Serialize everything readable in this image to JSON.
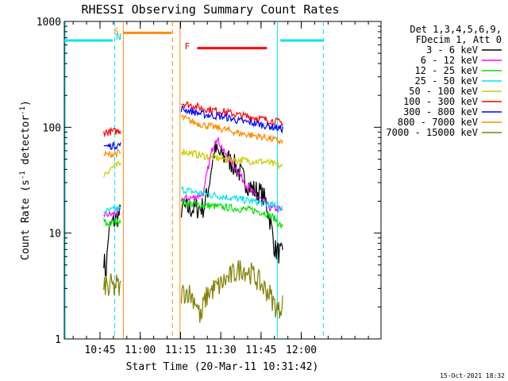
{
  "chart_data": {
    "type": "line",
    "title": "RHESSI Observing Summary Count Rates",
    "xlabel": "Start Time (20-Mar-11 10:31:42)",
    "ylabel_main": "Count Rate (s",
    "ylabel_sup1": "-1",
    "ylabel_mid": " detector",
    "ylabel_sup2": "-1",
    "ylabel_end": ")",
    "yscale": "log",
    "ylim": [
      1,
      1000
    ],
    "xlim_minutes": [
      0,
      118
    ],
    "y_ticks": [
      {
        "v": 1,
        "label": "1"
      },
      {
        "v": 10,
        "label": "10"
      },
      {
        "v": 100,
        "label": "100"
      },
      {
        "v": 1000,
        "label": "1000"
      }
    ],
    "x_ticks": [
      {
        "t": 13.3,
        "label": "10:45"
      },
      {
        "t": 28.3,
        "label": "11:00"
      },
      {
        "t": 43.3,
        "label": "11:15"
      },
      {
        "t": 58.3,
        "label": "11:30"
      },
      {
        "t": 73.3,
        "label": "11:45"
      },
      {
        "t": 88.3,
        "label": "12:00"
      }
    ],
    "legend_header": [
      "Det 1,3,4,5,6,9,",
      "FDecim 1, Att 0"
    ],
    "footer_date": "15-Oct-2021 18:32",
    "flags": [
      {
        "letter": "S",
        "t": 19.4,
        "color": "#ff8c00"
      },
      {
        "letter": "N",
        "t": 20.2,
        "color": "#00c8c8"
      },
      {
        "letter": "F",
        "t": 45.8,
        "color": "#e00000"
      }
    ],
    "bars": [
      {
        "t0": 0,
        "t1": 18,
        "y": 660,
        "color": "#00e5ee"
      },
      {
        "t0": 22,
        "t1": 40,
        "y": 780,
        "color": "#ff8c00"
      },
      {
        "t0": 49.5,
        "t1": 75.5,
        "y": 560,
        "color": "#ff0000"
      },
      {
        "t0": 80.5,
        "t1": 96.5,
        "y": 660,
        "color": "#00e5ee"
      }
    ],
    "vlines": [
      {
        "t": 0.3,
        "color": "#00e5ee",
        "dash": false
      },
      {
        "t": 18.8,
        "color": "#00e5ee",
        "dash": true
      },
      {
        "t": 22.0,
        "color": "#ff8c00",
        "dash": false
      },
      {
        "t": 40.3,
        "color": "#ff8c00",
        "dash": true
      },
      {
        "t": 43.1,
        "color": "#ff8c00",
        "dash": false
      },
      {
        "t": 79.4,
        "color": "#00e5ee",
        "dash": false
      },
      {
        "t": 96.5,
        "color": "#00e5ee",
        "dash": true
      }
    ],
    "segments": [
      {
        "t0": 14.7,
        "t1": 21.0
      },
      {
        "t0": 43.6,
        "t1": 81.6
      }
    ],
    "series": [
      {
        "name": "3 - 6 keV",
        "color": "#000000",
        "points": [
          [
            14.7,
            6
          ],
          [
            15.5,
            4
          ],
          [
            16.5,
            10
          ],
          [
            17.5,
            12
          ],
          [
            18.5,
            13
          ],
          [
            19.5,
            14
          ],
          [
            20.5,
            15
          ],
          [
            21,
            15
          ],
          [
            43.6,
            17
          ],
          [
            48,
            17
          ],
          [
            52,
            17.5
          ],
          [
            53,
            22
          ],
          [
            54,
            30
          ],
          [
            55,
            45
          ],
          [
            56,
            60
          ],
          [
            57,
            58
          ],
          [
            58,
            55
          ],
          [
            61,
            50
          ],
          [
            64,
            42
          ],
          [
            67,
            32
          ],
          [
            70,
            26
          ],
          [
            73,
            24
          ],
          [
            75,
            20
          ],
          [
            76.5,
            14
          ],
          [
            77.5,
            10
          ],
          [
            78.5,
            7
          ],
          [
            80,
            6.5
          ],
          [
            81.6,
            6
          ]
        ]
      },
      {
        "name": "6 - 12 keV",
        "color": "#ff00ff",
        "points": [
          [
            14.7,
            15
          ],
          [
            16,
            15
          ],
          [
            18,
            15
          ],
          [
            20,
            16
          ],
          [
            21,
            16
          ],
          [
            43.6,
            21
          ],
          [
            48,
            21.5
          ],
          [
            52,
            24
          ],
          [
            53,
            35
          ],
          [
            55,
            60
          ],
          [
            56.5,
            80
          ],
          [
            58,
            70
          ],
          [
            60,
            55
          ],
          [
            63,
            45
          ],
          [
            66,
            34
          ],
          [
            68,
            28
          ],
          [
            70,
            24
          ],
          [
            73,
            21
          ],
          [
            75,
            19
          ],
          [
            77,
            17
          ],
          [
            79,
            17
          ],
          [
            81.6,
            16.5
          ]
        ]
      },
      {
        "name": "12 - 25 keV",
        "color": "#00e000",
        "points": [
          [
            14.7,
            13
          ],
          [
            16,
            12
          ],
          [
            18,
            12.5
          ],
          [
            20,
            13
          ],
          [
            21,
            13.5
          ],
          [
            43.6,
            19.5
          ],
          [
            50,
            18.5
          ],
          [
            55,
            18
          ],
          [
            60,
            17.5
          ],
          [
            65,
            17
          ],
          [
            70,
            16.5
          ],
          [
            75,
            15.5
          ],
          [
            78,
            14
          ],
          [
            81.6,
            11
          ]
        ]
      },
      {
        "name": "25 - 50 keV",
        "color": "#00e5ee",
        "points": [
          [
            14.7,
            16
          ],
          [
            16,
            16
          ],
          [
            18,
            16.5
          ],
          [
            20,
            17
          ],
          [
            21,
            17
          ],
          [
            43.6,
            26
          ],
          [
            50,
            24
          ],
          [
            55,
            23
          ],
          [
            60,
            22
          ],
          [
            65,
            21
          ],
          [
            70,
            20
          ],
          [
            75,
            19
          ],
          [
            81.6,
            17
          ]
        ]
      },
      {
        "name": "50 - 100 keV",
        "color": "#cccc00",
        "points": [
          [
            14.7,
            36
          ],
          [
            16,
            38
          ],
          [
            18,
            42
          ],
          [
            20,
            44
          ],
          [
            21,
            45
          ],
          [
            43.6,
            60
          ],
          [
            50,
            55
          ],
          [
            55,
            52
          ],
          [
            60,
            50
          ],
          [
            65,
            49
          ],
          [
            70,
            48
          ],
          [
            75,
            47
          ],
          [
            81.6,
            42
          ]
        ]
      },
      {
        "name": "100 - 300 keV",
        "color": "#ff0000",
        "points": [
          [
            14.7,
            90
          ],
          [
            16,
            90
          ],
          [
            18,
            91
          ],
          [
            20,
            92
          ],
          [
            21,
            93
          ],
          [
            43.6,
            170
          ],
          [
            48,
            160
          ],
          [
            52,
            150
          ],
          [
            56,
            145
          ],
          [
            60,
            140
          ],
          [
            65,
            130
          ],
          [
            70,
            125
          ],
          [
            75,
            118
          ],
          [
            81.6,
            110
          ]
        ]
      },
      {
        "name": "300 - 800 keV",
        "color": "#0000ff",
        "points": [
          [
            14.7,
            67
          ],
          [
            16,
            66
          ],
          [
            18,
            67
          ],
          [
            20,
            68
          ],
          [
            21,
            68
          ],
          [
            43.6,
            150
          ],
          [
            48,
            140
          ],
          [
            52,
            132
          ],
          [
            56,
            128
          ],
          [
            60,
            125
          ],
          [
            65,
            115
          ],
          [
            70,
            110
          ],
          [
            75,
            104
          ],
          [
            81.6,
            96
          ]
        ]
      },
      {
        "name": "800 - 7000 keV",
        "color": "#ff8c00",
        "points": [
          [
            14.7,
            55
          ],
          [
            16,
            55
          ],
          [
            18,
            56
          ],
          [
            20,
            57
          ],
          [
            21,
            57
          ],
          [
            43.6,
            125
          ],
          [
            48,
            112
          ],
          [
            52,
            105
          ],
          [
            56,
            100
          ],
          [
            60,
            95
          ],
          [
            65,
            88
          ],
          [
            70,
            84
          ],
          [
            75,
            80
          ],
          [
            81.6,
            72
          ]
        ]
      },
      {
        "name": "7000 - 15000 keV",
        "color": "#808000",
        "points": [
          [
            14.7,
            2.8
          ],
          [
            15.5,
            3.4
          ],
          [
            16.5,
            2.8
          ],
          [
            17.5,
            3.3
          ],
          [
            18.5,
            3
          ],
          [
            19.5,
            3.3
          ],
          [
            20.5,
            2.9
          ],
          [
            21,
            3
          ],
          [
            43.6,
            2.7
          ],
          [
            46,
            2.8
          ],
          [
            49,
            2.3
          ],
          [
            51,
            1.5
          ],
          [
            52,
            2.2
          ],
          [
            54,
            2.8
          ],
          [
            56,
            3
          ],
          [
            58,
            3.2
          ],
          [
            60,
            3.6
          ],
          [
            62,
            3.9
          ],
          [
            64,
            4.3
          ],
          [
            66,
            4.7
          ],
          [
            68,
            4.4
          ],
          [
            70,
            4.1
          ],
          [
            72,
            3.6
          ],
          [
            74,
            3.1
          ],
          [
            76,
            2.8
          ],
          [
            78,
            2.2
          ],
          [
            80,
            1.8
          ],
          [
            81.6,
            2.5
          ]
        ]
      }
    ]
  }
}
